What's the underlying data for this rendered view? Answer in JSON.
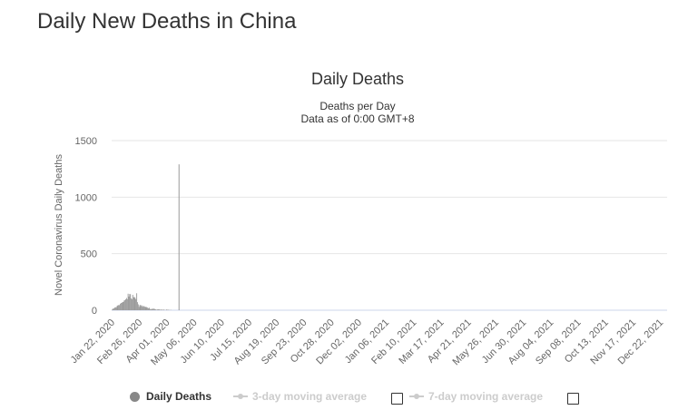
{
  "page": {
    "title": "Daily New Deaths in China"
  },
  "colors": {
    "bar": "#999999",
    "grid": "#e6e6e6",
    "axis_text": "#666666",
    "title": "#333333",
    "legend_off": "#cccccc"
  },
  "legend": {
    "items": [
      {
        "label": "Daily Deaths",
        "active": true
      },
      {
        "label": "3-day moving average",
        "active": false
      },
      {
        "label": "7-day moving average",
        "active": false
      }
    ]
  },
  "chart_data": {
    "type": "bar",
    "title": "Daily Deaths",
    "subtitle_lines": [
      "Deaths per Day",
      "Data as of 0:00 GMT+8"
    ],
    "ylabel": "Novel Coronavirus Daily Deaths",
    "xlabel": "",
    "ylim": [
      0,
      1500
    ],
    "yticks": [
      0,
      500,
      1000,
      1500
    ],
    "grid": true,
    "x_start": "2020-01-22",
    "x_end": "2021-12-31",
    "xtick_labels": [
      "Jan 22, 2020",
      "Feb 26, 2020",
      "Apr 01, 2020",
      "May 06, 2020",
      "Jun 10, 2020",
      "Jul 15, 2020",
      "Aug 19, 2020",
      "Sep 23, 2020",
      "Oct 28, 2020",
      "Dec 02, 2020",
      "Jan 06, 2021",
      "Feb 10, 2021",
      "Mar 17, 2021",
      "Apr 21, 2021",
      "May 26, 2021",
      "Jun 30, 2021",
      "Aug 04, 2021",
      "Sep 08, 2021",
      "Oct 13, 2021",
      "Nov 17, 2021",
      "Dec 22, 2021"
    ],
    "series": [
      {
        "name": "Daily Deaths",
        "points": [
          [
            "2020-01-23",
            8
          ],
          [
            "2020-01-24",
            16
          ],
          [
            "2020-01-25",
            15
          ],
          [
            "2020-01-26",
            24
          ],
          [
            "2020-01-27",
            26
          ],
          [
            "2020-01-28",
            26
          ],
          [
            "2020-01-29",
            38
          ],
          [
            "2020-01-30",
            43
          ],
          [
            "2020-01-31",
            46
          ],
          [
            "2020-02-01",
            45
          ],
          [
            "2020-02-02",
            57
          ],
          [
            "2020-02-03",
            64
          ],
          [
            "2020-02-04",
            65
          ],
          [
            "2020-02-05",
            73
          ],
          [
            "2020-02-06",
            73
          ],
          [
            "2020-02-07",
            86
          ],
          [
            "2020-02-08",
            89
          ],
          [
            "2020-02-09",
            97
          ],
          [
            "2020-02-10",
            108
          ],
          [
            "2020-02-11",
            97
          ],
          [
            "2020-02-12",
            146
          ],
          [
            "2020-02-13",
            121
          ],
          [
            "2020-02-14",
            143
          ],
          [
            "2020-02-15",
            142
          ],
          [
            "2020-02-16",
            105
          ],
          [
            "2020-02-17",
            98
          ],
          [
            "2020-02-18",
            136
          ],
          [
            "2020-02-19",
            114
          ],
          [
            "2020-02-20",
            118
          ],
          [
            "2020-02-21",
            109
          ],
          [
            "2020-02-22",
            97
          ],
          [
            "2020-02-23",
            150
          ],
          [
            "2020-02-24",
            71
          ],
          [
            "2020-02-25",
            52
          ],
          [
            "2020-02-26",
            29
          ],
          [
            "2020-02-27",
            44
          ],
          [
            "2020-02-28",
            47
          ],
          [
            "2020-02-29",
            35
          ],
          [
            "2020-03-01",
            42
          ],
          [
            "2020-03-02",
            31
          ],
          [
            "2020-03-03",
            38
          ],
          [
            "2020-03-04",
            31
          ],
          [
            "2020-03-05",
            30
          ],
          [
            "2020-03-06",
            28
          ],
          [
            "2020-03-07",
            27
          ],
          [
            "2020-03-08",
            22
          ],
          [
            "2020-03-09",
            17
          ],
          [
            "2020-03-10",
            22
          ],
          [
            "2020-03-11",
            11
          ],
          [
            "2020-03-12",
            7
          ],
          [
            "2020-03-13",
            13
          ],
          [
            "2020-03-14",
            10
          ],
          [
            "2020-03-15",
            14
          ],
          [
            "2020-03-16",
            13
          ],
          [
            "2020-03-17",
            11
          ],
          [
            "2020-03-18",
            8
          ],
          [
            "2020-03-19",
            3
          ],
          [
            "2020-03-20",
            7
          ],
          [
            "2020-03-21",
            6
          ],
          [
            "2020-03-22",
            9
          ],
          [
            "2020-03-23",
            7
          ],
          [
            "2020-03-24",
            4
          ],
          [
            "2020-03-25",
            6
          ],
          [
            "2020-03-26",
            5
          ],
          [
            "2020-03-27",
            3
          ],
          [
            "2020-03-28",
            5
          ],
          [
            "2020-03-29",
            5
          ],
          [
            "2020-03-30",
            1
          ],
          [
            "2020-03-31",
            1
          ],
          [
            "2020-04-01",
            6
          ],
          [
            "2020-04-02",
            4
          ],
          [
            "2020-04-03",
            4
          ],
          [
            "2020-04-04",
            3
          ],
          [
            "2020-04-05",
            1
          ],
          [
            "2020-04-06",
            1
          ],
          [
            "2020-04-07",
            2
          ],
          [
            "2020-04-17",
            1290
          ]
        ]
      }
    ]
  }
}
